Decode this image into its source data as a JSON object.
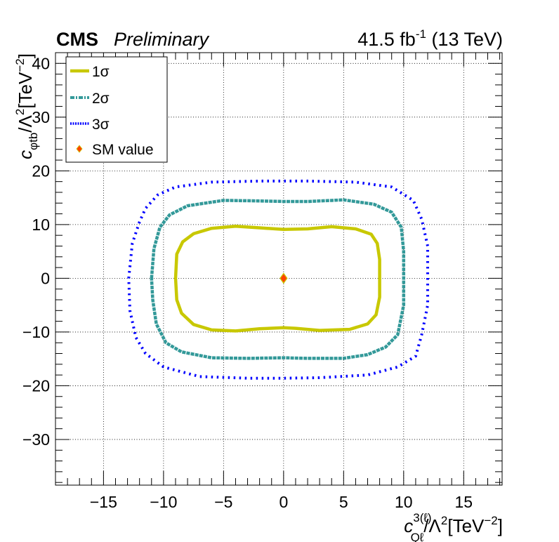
{
  "header": {
    "experiment": "CMS",
    "status": "Preliminary",
    "lumi": "41.5 fb",
    "lumi_exp": "-1",
    "energy": " (13 TeV)"
  },
  "axes": {
    "x_title_main": "c",
    "x_title_sup": "3(ℓ)",
    "x_title_sub": "Qℓ",
    "x_title_rest": "/Λ",
    "x_title_sup2": "2",
    "x_title_unit": "[TeV",
    "x_title_unit_exp": "−2",
    "x_title_close": "]",
    "y_title_main": "c",
    "y_title_sub": "φtb",
    "y_title_rest": "/Λ",
    "y_title_sup2": "2",
    "y_title_unit": "[TeV",
    "y_title_unit_exp": "−2",
    "y_title_close": "]"
  },
  "legend": [
    {
      "label": "1σ",
      "style": "solid",
      "color": "#c8c800"
    },
    {
      "label": "2σ",
      "style": "dash-dot",
      "color": "#339999"
    },
    {
      "label": "3σ",
      "style": "dotted",
      "color": "#0000ff"
    },
    {
      "label": "SM value",
      "style": "marker",
      "color": "#ff4400"
    }
  ],
  "chart_data": {
    "type": "scatter",
    "xlim": [
      -19,
      18.2
    ],
    "ylim": [
      -38.5,
      42
    ],
    "x_ticks": [
      -15,
      -10,
      -5,
      0,
      5,
      10,
      15
    ],
    "y_ticks": [
      -30,
      -20,
      -10,
      0,
      10,
      20,
      30,
      40
    ],
    "x_tick_labels": [
      "−15",
      "−10",
      "−5",
      "0",
      "5",
      "10",
      "15"
    ],
    "y_tick_labels": [
      "−30",
      "−20",
      "−10",
      "0",
      "10",
      "20",
      "30",
      "40"
    ],
    "grid": true,
    "legend_position": "top-left",
    "series": [
      {
        "name": "1σ",
        "color": "#c8c800",
        "points": [
          [
            -9,
            0
          ],
          [
            -8.9,
            4.5
          ],
          [
            -8.4,
            6.8
          ],
          [
            -7.5,
            8.3
          ],
          [
            -6,
            9.3
          ],
          [
            -4,
            9.7
          ],
          [
            -2,
            9.4
          ],
          [
            0,
            9.1
          ],
          [
            2,
            9.2
          ],
          [
            4,
            9.6
          ],
          [
            6,
            9.2
          ],
          [
            7.3,
            8.2
          ],
          [
            7.8,
            6.5
          ],
          [
            8,
            3.5
          ],
          [
            8,
            0
          ],
          [
            8,
            -3.5
          ],
          [
            7.7,
            -6.8
          ],
          [
            7,
            -8.5
          ],
          [
            5.5,
            -9.5
          ],
          [
            3,
            -9.7
          ],
          [
            1,
            -9.3
          ],
          [
            0,
            -9.2
          ],
          [
            -2,
            -9.4
          ],
          [
            -4,
            -9.8
          ],
          [
            -6,
            -9.6
          ],
          [
            -7.5,
            -8.6
          ],
          [
            -8.5,
            -6.5
          ],
          [
            -8.9,
            -4
          ],
          [
            -9,
            0
          ]
        ]
      },
      {
        "name": "2σ",
        "color": "#339999",
        "points": [
          [
            -11,
            0
          ],
          [
            -10.8,
            5.5
          ],
          [
            -10.3,
            9.5
          ],
          [
            -9.5,
            11.8
          ],
          [
            -8,
            13.5
          ],
          [
            -5,
            14.5
          ],
          [
            -2,
            14.4
          ],
          [
            0,
            14.3
          ],
          [
            2,
            14.3
          ],
          [
            5,
            14.6
          ],
          [
            7.5,
            13.8
          ],
          [
            9,
            12.3
          ],
          [
            9.8,
            9.5
          ],
          [
            10,
            5
          ],
          [
            10,
            0
          ],
          [
            10,
            -5
          ],
          [
            9.5,
            -10.5
          ],
          [
            8.5,
            -12.8
          ],
          [
            7,
            -14.2
          ],
          [
            5,
            -14.9
          ],
          [
            2,
            -14.9
          ],
          [
            0,
            -14.8
          ],
          [
            -3,
            -14.9
          ],
          [
            -6,
            -14.8
          ],
          [
            -8.5,
            -13.7
          ],
          [
            -9.8,
            -12
          ],
          [
            -10.6,
            -8.5
          ],
          [
            -10.9,
            -4
          ],
          [
            -11,
            0
          ]
        ]
      },
      {
        "name": "3σ",
        "color": "#0000ff",
        "points": [
          [
            -12.9,
            0
          ],
          [
            -12.6,
            6.5
          ],
          [
            -12,
            10.5
          ],
          [
            -11.5,
            13
          ],
          [
            -10.5,
            15.5
          ],
          [
            -9,
            17
          ],
          [
            -6,
            17.9
          ],
          [
            -2,
            18.1
          ],
          [
            2,
            18.1
          ],
          [
            6,
            17.9
          ],
          [
            9,
            17
          ],
          [
            10.8,
            14.5
          ],
          [
            11.5,
            11
          ],
          [
            12,
            6
          ],
          [
            12,
            0
          ],
          [
            12,
            -5
          ],
          [
            11.5,
            -10.5
          ],
          [
            11,
            -14.5
          ],
          [
            9.5,
            -16.5
          ],
          [
            7,
            -18
          ],
          [
            3,
            -18.5
          ],
          [
            0,
            -18.6
          ],
          [
            -3,
            -18.6
          ],
          [
            -7,
            -18.3
          ],
          [
            -10,
            -16.5
          ],
          [
            -11.5,
            -14
          ],
          [
            -12.3,
            -11
          ],
          [
            -12.8,
            -6
          ],
          [
            -12.9,
            0
          ]
        ]
      }
    ],
    "sm_point": {
      "name": "SM value",
      "x": 0,
      "y": 0,
      "color": "#ff4400"
    }
  }
}
